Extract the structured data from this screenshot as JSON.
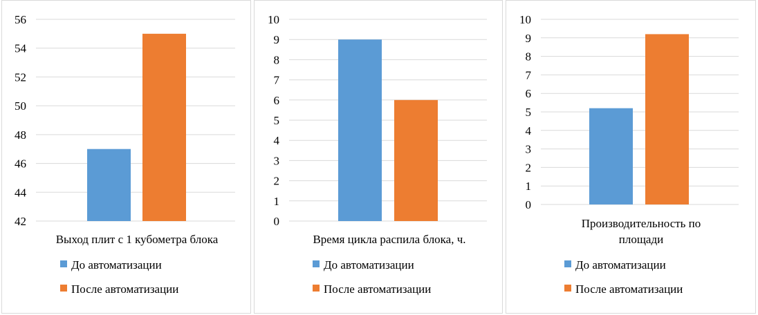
{
  "chart_data": [
    {
      "type": "bar",
      "categories": [
        "Выход плит с 1 кубометра блока"
      ],
      "series": [
        {
          "name": "До автоматизации",
          "values": [
            47
          ]
        },
        {
          "name": "После автоматизации",
          "values": [
            55
          ]
        }
      ],
      "ylim": [
        42,
        56
      ],
      "yticks": [
        42,
        44,
        46,
        48,
        50,
        52,
        54,
        56
      ],
      "grid": true,
      "legend": "bottom"
    },
    {
      "type": "bar",
      "categories": [
        "Время цикла распила блока, ч."
      ],
      "series": [
        {
          "name": "До автоматизации",
          "values": [
            9
          ]
        },
        {
          "name": "После автоматизации",
          "values": [
            6
          ]
        }
      ],
      "ylim": [
        0,
        10
      ],
      "yticks": [
        0,
        1,
        2,
        3,
        4,
        5,
        6,
        7,
        8,
        9,
        10
      ],
      "grid": true,
      "legend": "bottom"
    },
    {
      "type": "bar",
      "categories": [
        "Производительность по площади"
      ],
      "category_lines": [
        "Производительность по",
        "площади"
      ],
      "series": [
        {
          "name": "До автоматизации",
          "values": [
            5.2
          ]
        },
        {
          "name": "После автоматизации",
          "values": [
            9.2
          ]
        }
      ],
      "ylim": [
        0,
        10
      ],
      "yticks": [
        0,
        1,
        2,
        3,
        4,
        5,
        6,
        7,
        8,
        9,
        10
      ],
      "grid": true,
      "legend": "bottom"
    }
  ],
  "colors": {
    "before": "#5b9bd5",
    "after": "#ed7d31",
    "grid": "#d9d9d9"
  }
}
